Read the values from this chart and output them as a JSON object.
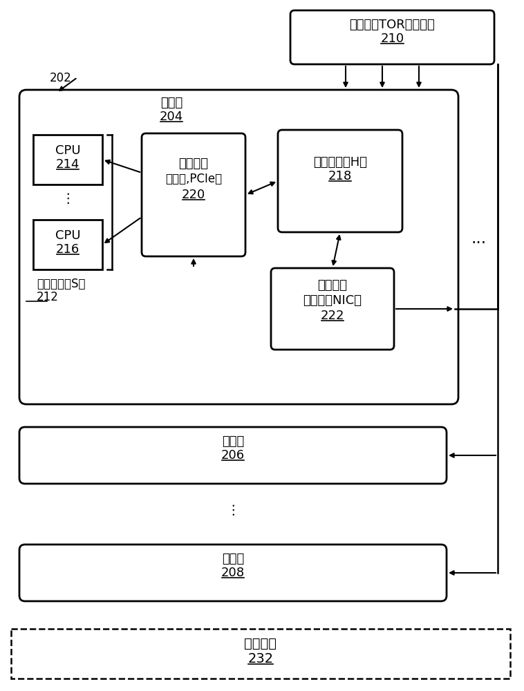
{
  "bg_color": "#ffffff",
  "fig_width": 7.58,
  "fig_height": 10.0,
  "label_202": "202",
  "label_tor": "架顶式（TOR）交换机",
  "label_tor_num": "210",
  "label_server204": "服务器",
  "label_server204_num": "204",
  "label_cpu214": "CPU",
  "label_cpu214_num": "214",
  "label_cpu216": "CPU",
  "label_cpu216_num": "216",
  "label_host": "主机组件（S）",
  "label_host_num": "212",
  "label_local": "本地链接",
  "label_local2": "（例如,PCIe）",
  "label_local_num": "220",
  "label_accel": "加速组件（H）",
  "label_accel_num": "218",
  "label_nic": "网络接口",
  "label_nic2": "控制器（NIC）",
  "label_nic_num": "222",
  "label_server206": "服务器",
  "label_server206_num": "206",
  "label_server208": "服务器",
  "label_server208_num": "208",
  "label_mgmt": "管理功能",
  "label_mgmt_num": "232",
  "label_dots_h": "...",
  "label_dots_v": "⋮"
}
